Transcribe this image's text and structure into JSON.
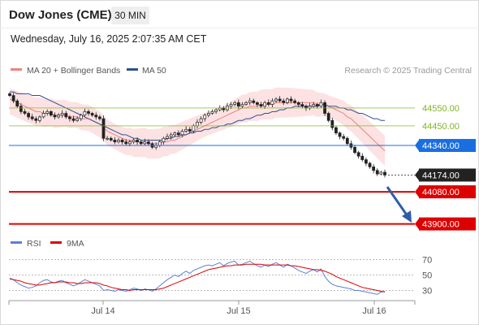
{
  "header": {
    "title": "Dow Jones (CME)",
    "timeframe": "30 MIN",
    "datetime": "Wednesday, July 16, 2025 2:07:35 AM CET"
  },
  "legend": {
    "bollinger": {
      "label": "MA 20 + Bollinger Bands",
      "color": "#f08080"
    },
    "ma50": {
      "label": "MA 50",
      "color": "#2f4f8f"
    },
    "credit": "Research © 2025 Trading Central"
  },
  "rsi_legend": {
    "rsi": {
      "label": "RSI",
      "color": "#5b7fd6"
    },
    "ma9": {
      "label": "9MA",
      "color": "#dd0000"
    }
  },
  "chart_data": [
    {
      "type": "candlestick",
      "price_range": [
        43880,
        44700
      ],
      "x_labels": [
        "Jul 14",
        "Jul 15",
        "Jul 16"
      ],
      "levels": [
        {
          "label": "44550.00",
          "value": 44550,
          "kind": "resistance",
          "color": "#7fb51f"
        },
        {
          "label": "44450.00",
          "value": 44450,
          "kind": "resistance",
          "color": "#7fb51f"
        },
        {
          "label": "44340.00",
          "value": 44340,
          "kind": "pivot",
          "color": "#1a6fe0"
        },
        {
          "label": "44174.00",
          "value": 44174,
          "kind": "last",
          "color": "#222222"
        },
        {
          "label": "44080.00",
          "value": 44080,
          "kind": "support",
          "color": "#dd0000"
        },
        {
          "label": "43900.00",
          "value": 43900,
          "kind": "support",
          "color": "#dd0000"
        }
      ],
      "close": [
        44620,
        44590,
        44560,
        44530,
        44520,
        44500,
        44490,
        44480,
        44500,
        44520,
        44530,
        44510,
        44500,
        44510,
        44520,
        44500,
        44490,
        44480,
        44490,
        44510,
        44530,
        44520,
        44510,
        44500,
        44490,
        44380,
        44380,
        44370,
        44360,
        44370,
        44360,
        44350,
        44360,
        44370,
        44360,
        44350,
        44360,
        44350,
        44330,
        44340,
        44360,
        44380,
        44390,
        44400,
        44410,
        44400,
        44420,
        44430,
        44420,
        44450,
        44470,
        44490,
        44510,
        44520,
        44530,
        44540,
        44550,
        44540,
        44560,
        44570,
        44580,
        44560,
        44570,
        44580,
        44590,
        44580,
        44570,
        44560,
        44580,
        44570,
        44590,
        44600,
        44590,
        44580,
        44600,
        44590,
        44580,
        44570,
        44560,
        44550,
        44560,
        44570,
        44560,
        44580,
        44520,
        44480,
        44440,
        44410,
        44390,
        44380,
        44350,
        44330,
        44300,
        44280,
        44260,
        44240,
        44220,
        44200,
        44180,
        44190,
        44174
      ],
      "ma50": [
        44640,
        44640,
        44630,
        44630,
        44630,
        44630,
        44620,
        44620,
        44620,
        44610,
        44600,
        44590,
        44580,
        44570,
        44560,
        44550,
        44540,
        44530,
        44520,
        44510,
        44500,
        44490,
        44480,
        44470,
        44460,
        44450,
        44440,
        44430,
        44420,
        44410,
        44400,
        44400,
        44390,
        44380,
        44380,
        44370,
        44370,
        44370,
        44370,
        44370,
        44370,
        44370,
        44380,
        44380,
        44390,
        44390,
        44400,
        44400,
        44410,
        44410,
        44420,
        44420,
        44430,
        44430,
        44440,
        44440,
        44450,
        44450,
        44460,
        44460,
        44470,
        44480,
        44480,
        44490,
        44490,
        44500,
        44510,
        44510,
        44520,
        44520,
        44530,
        44530,
        44540,
        44540,
        44550,
        44550,
        44560,
        44560,
        44560,
        44560,
        44560,
        44560,
        44560,
        44570,
        44570,
        44560,
        44560,
        44560,
        44550,
        44550,
        44540,
        44540,
        44530,
        44520,
        44520,
        44510,
        44500,
        44490,
        44490,
        44480,
        44480
      ],
      "ma20": [
        44600,
        44590,
        44580,
        44570,
        44560,
        44550,
        44540,
        44530,
        44530,
        44520,
        44520,
        44520,
        44510,
        44510,
        44510,
        44510,
        44500,
        44500,
        44500,
        44490,
        44490,
        44490,
        44480,
        44470,
        44460,
        44440,
        44420,
        44410,
        44400,
        44390,
        44380,
        44370,
        44370,
        44360,
        44360,
        44360,
        44360,
        44350,
        44350,
        44350,
        44350,
        44360,
        44360,
        44370,
        44370,
        44380,
        44390,
        44400,
        44410,
        44420,
        44430,
        44440,
        44450,
        44460,
        44470,
        44480,
        44490,
        44500,
        44510,
        44520,
        44530,
        44540,
        44550,
        44550,
        44560,
        44560,
        44560,
        44570,
        44570,
        44570,
        44570,
        44580,
        44580,
        44580,
        44580,
        44580,
        44580,
        44580,
        44580,
        44580,
        44580,
        44580,
        44570,
        44570,
        44570,
        44560,
        44550,
        44540,
        44530,
        44520,
        44500,
        44490,
        44470,
        44450,
        44430,
        44410,
        44390,
        44370,
        44350,
        44330,
        44310
      ]
    },
    {
      "type": "line",
      "title": "RSI",
      "ylim": [
        20,
        80
      ],
      "yticks": [
        70,
        50,
        30
      ],
      "series": [
        {
          "name": "RSI",
          "values": [
            46,
            44,
            40,
            37,
            35,
            33,
            34,
            36,
            40,
            43,
            44,
            41,
            40,
            42,
            43,
            40,
            38,
            36,
            38,
            41,
            44,
            42,
            40,
            38,
            36,
            30,
            31,
            30,
            29,
            31,
            30,
            29,
            31,
            33,
            32,
            30,
            32,
            31,
            29,
            32,
            36,
            40,
            44,
            47,
            50,
            48,
            52,
            55,
            52,
            56,
            58,
            60,
            62,
            63,
            62,
            64,
            66,
            62,
            65,
            67,
            68,
            63,
            64,
            66,
            68,
            65,
            62,
            60,
            63,
            61,
            64,
            66,
            63,
            60,
            64,
            62,
            59,
            56,
            54,
            52,
            55,
            57,
            54,
            58,
            48,
            42,
            38,
            36,
            35,
            34,
            33,
            32,
            30,
            30,
            29,
            28,
            27,
            26,
            25,
            28,
            29
          ]
        },
        {
          "name": "9MA",
          "values": [
            45,
            44,
            43,
            42,
            40,
            39,
            38,
            37,
            37,
            38,
            39,
            40,
            40,
            41,
            41,
            41,
            40,
            40,
            39,
            39,
            40,
            40,
            40,
            40,
            39,
            37,
            36,
            34,
            33,
            32,
            31,
            31,
            30,
            31,
            31,
            31,
            31,
            31,
            31,
            31,
            32,
            33,
            35,
            37,
            39,
            41,
            43,
            45,
            47,
            49,
            51,
            53,
            55,
            57,
            58,
            59,
            60,
            61,
            62,
            62,
            63,
            63,
            63,
            64,
            64,
            64,
            64,
            64,
            63,
            63,
            63,
            63,
            63,
            63,
            63,
            62,
            62,
            61,
            60,
            59,
            58,
            57,
            57,
            56,
            55,
            53,
            51,
            48,
            46,
            44,
            42,
            40,
            38,
            36,
            34,
            33,
            32,
            31,
            30,
            29,
            28
          ]
        }
      ]
    }
  ]
}
